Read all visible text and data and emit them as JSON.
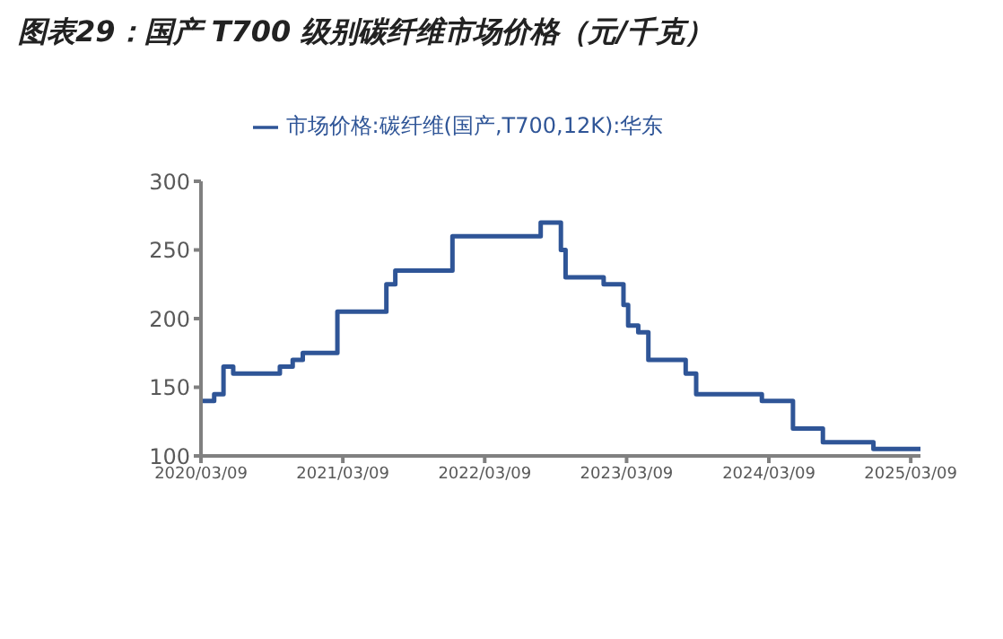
{
  "chart_data": {
    "type": "step",
    "title": "图表29：国产 T700 级别碳纤维市场价格（元/千克）",
    "x": [
      "2020-03-09",
      "2020-04-12",
      "2020-05-06",
      "2020-05-31",
      "2020-09-28",
      "2020-10-31",
      "2020-11-26",
      "2021-02-23",
      "2021-06-29",
      "2021-07-22",
      "2021-12-16",
      "2022-07-31",
      "2022-09-21",
      "2022-10-03",
      "2023-01-09",
      "2023-03-01",
      "2023-03-13",
      "2023-04-08",
      "2023-05-04",
      "2023-08-08",
      "2023-09-04",
      "2024-02-20",
      "2024-05-10",
      "2024-07-26",
      "2024-12-03",
      "2025-04-03"
    ],
    "series": [
      {
        "name": "市场价格:碳纤维(国产,T700,12K):华东",
        "color": "#2f5597",
        "values": [
          140,
          145,
          165,
          160,
          165,
          170,
          175,
          205,
          225,
          235,
          260,
          270,
          250,
          230,
          225,
          210,
          195,
          190,
          170,
          160,
          145,
          140,
          120,
          110,
          105,
          105
        ]
      }
    ],
    "xlim": [
      "2020-03-09",
      "2025-04-03"
    ],
    "xticks": [
      {
        "value": "2020-03-09",
        "label": "2020/03/09"
      },
      {
        "value": "2021-03-09",
        "label": "2021/03/09"
      },
      {
        "value": "2022-03-09",
        "label": "2022/03/09"
      },
      {
        "value": "2023-03-09",
        "label": "2023/03/09"
      },
      {
        "value": "2024-03-09",
        "label": "2024/03/09"
      },
      {
        "value": "2025-03-09",
        "label": "2025/03/09"
      }
    ],
    "ylim": [
      100,
      300
    ],
    "yticks": [
      100,
      150,
      200,
      250,
      300
    ],
    "grid": false,
    "legend": "top",
    "marker": "none",
    "line_style": "solid"
  }
}
